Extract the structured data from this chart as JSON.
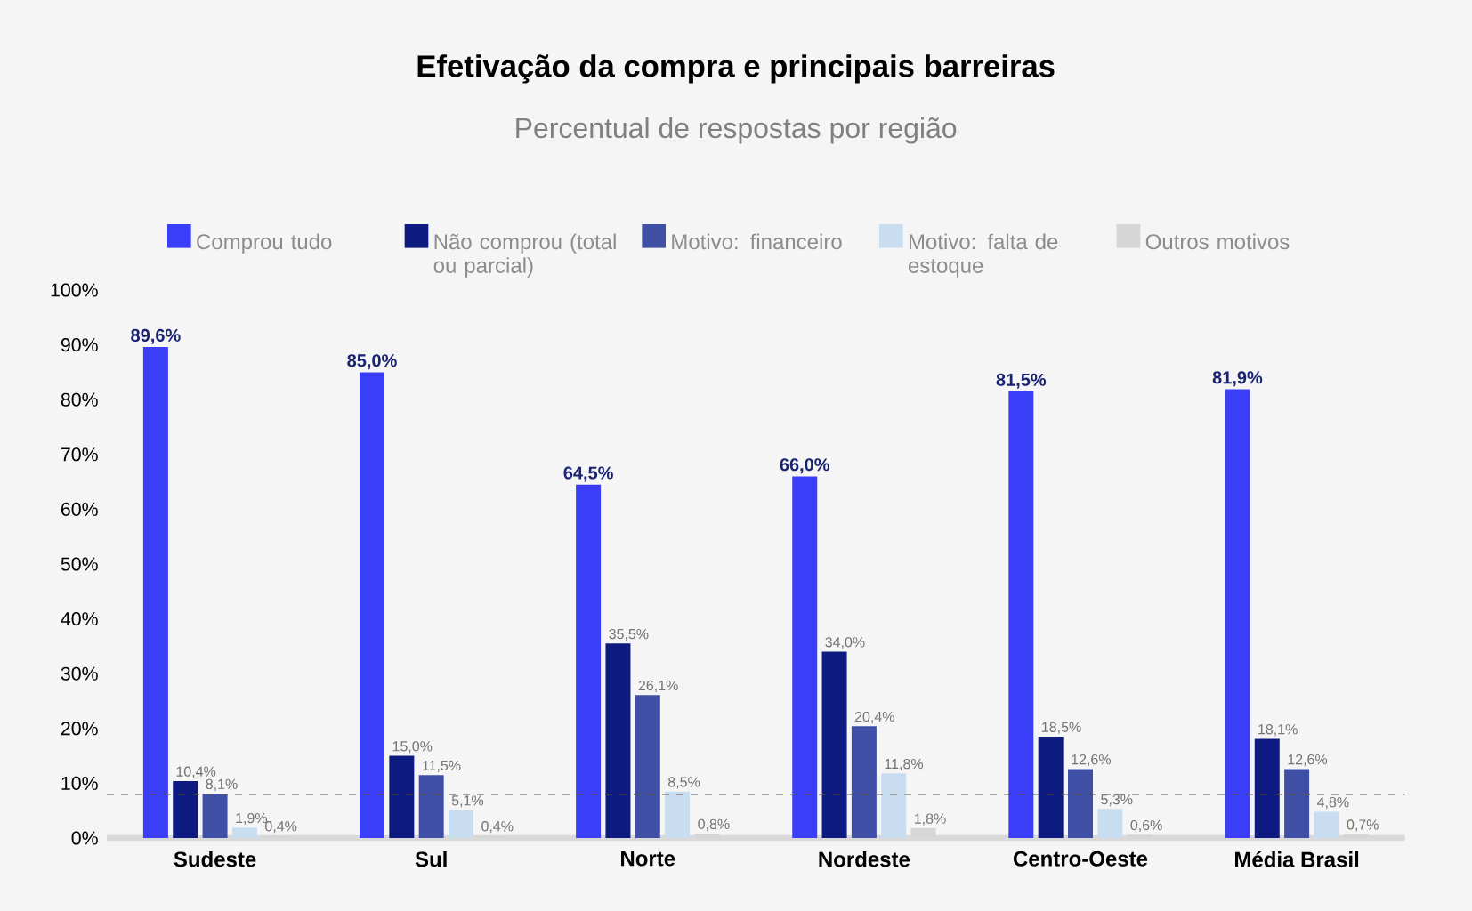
{
  "chart_data": {
    "type": "bar",
    "title": "Efetivação da compra e principais barreiras",
    "subtitle": "Percentual de respostas por região",
    "categories": [
      "Sudeste",
      "Sul",
      "Norte",
      "Nordeste",
      "Centro-Oeste",
      "Média Brasil"
    ],
    "series": [
      {
        "name": "Comprou tudo",
        "color": "#3a3ef7",
        "values": [
          89.6,
          85.0,
          64.5,
          66.0,
          81.5,
          81.9
        ],
        "value_labels": [
          "89,6%",
          "85,0%",
          "64,5%",
          "66,0%",
          "81,5%",
          "81,9%"
        ]
      },
      {
        "name": "Não comprou (total ou parcial)",
        "color": "#0d1a80",
        "values": [
          10.4,
          15.0,
          35.5,
          34.0,
          18.5,
          18.1
        ],
        "value_labels": [
          "10,4%",
          "15,0%",
          "35,5%",
          "34,0%",
          "18,5%",
          "18,1%"
        ]
      },
      {
        "name": "Motivo: financeiro",
        "color": "#3f4fa6",
        "values": [
          8.1,
          11.5,
          26.1,
          20.4,
          12.6,
          12.6
        ],
        "value_labels": [
          "8,1%",
          "11,5%",
          "26,1%",
          "20,4%",
          "12,6%",
          "12,6%"
        ]
      },
      {
        "name": "Motivo: falta de estoque",
        "color": "#c9ddf0",
        "values": [
          1.9,
          5.1,
          8.5,
          11.8,
          5.3,
          4.8
        ],
        "value_labels": [
          "1,9%",
          "5,1%",
          "8,5%",
          "11,8%",
          "5,3%",
          "4,8%"
        ]
      },
      {
        "name": "Outros motivos",
        "color": "#d6d6d6",
        "values": [
          0.4,
          0.4,
          0.8,
          1.8,
          0.6,
          0.7
        ],
        "value_labels": [
          "0,4%",
          "0,4%",
          "0,8%",
          "1,8%",
          "0,6%",
          "0,7%"
        ]
      }
    ],
    "ylim": [
      0,
      100
    ],
    "yticks": [
      {
        "value": 0,
        "label": "0%"
      },
      {
        "value": 10,
        "label": "10%"
      },
      {
        "value": 20,
        "label": "20%"
      },
      {
        "value": 30,
        "label": "30%"
      },
      {
        "value": 40,
        "label": "40%"
      },
      {
        "value": 50,
        "label": "50%"
      },
      {
        "value": 60,
        "label": "60%"
      },
      {
        "value": 70,
        "label": "70%"
      },
      {
        "value": 80,
        "label": "80%"
      },
      {
        "value": 90,
        "label": "90%"
      },
      {
        "value": 100,
        "label": "100%"
      }
    ],
    "ref_lines": [
      {
        "axis": "y",
        "value": 8,
        "line_style": "dashed",
        "color": "#555555"
      }
    ],
    "grid": false,
    "legend": "top"
  }
}
